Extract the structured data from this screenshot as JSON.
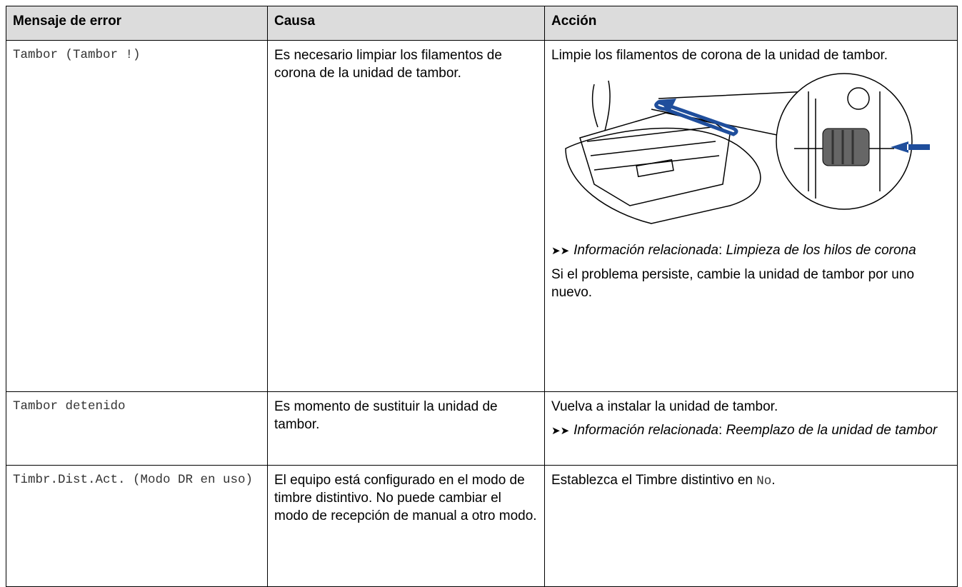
{
  "table": {
    "headers": [
      "Mensaje de error",
      "Causa",
      "Acción"
    ],
    "rows": [
      {
        "message": "Tambor (Tambor !)",
        "cause": "Es necesario limpiar los filamentos de corona de la unidad de tambor.",
        "action": {
          "text": "Limpie los filamentos de corona de la unidad de tambor.",
          "related_label": "Información relacionada",
          "related_sep": ":",
          "related_link": "Limpieza de los hilos de corona",
          "note": "Si el problema persiste, cambie la unidad de tambor por uno nuevo."
        }
      },
      {
        "message": "Tambor detenido",
        "cause": "Es momento de sustituir la unidad de tambor.",
        "action": {
          "text": "Vuelva a instalar la unidad de tambor.",
          "related_label": "Información relacionada",
          "related_sep": ":",
          "related_link": "Reemplazo de la unidad de tambor"
        }
      },
      {
        "message": "Timbr.Dist.Act. (Modo DR en uso)",
        "cause": "El equipo está configurado en el modo de timbre distintivo. No puede cambiar el modo de recepción de manual a otro modo.",
        "action": {
          "text_before": "Establezca el Timbre distintivo en ",
          "code": "No",
          "text_after": "."
        }
      }
    ]
  }
}
